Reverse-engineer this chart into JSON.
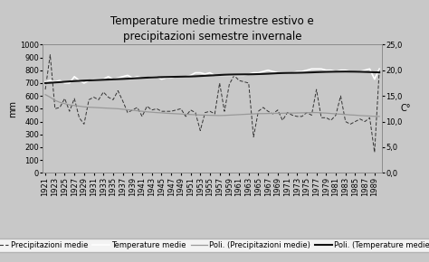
{
  "title": "Temperature medie trimestre estivo e\nprecipitazioni semestre invernale",
  "ylabel_left": "mm",
  "ylabel_right": "C°",
  "years": [
    1921,
    1922,
    1923,
    1924,
    1925,
    1926,
    1927,
    1928,
    1929,
    1930,
    1931,
    1932,
    1933,
    1934,
    1935,
    1936,
    1937,
    1938,
    1939,
    1940,
    1941,
    1942,
    1943,
    1944,
    1945,
    1946,
    1947,
    1948,
    1949,
    1950,
    1951,
    1952,
    1953,
    1954,
    1955,
    1956,
    1957,
    1958,
    1959,
    1960,
    1961,
    1962,
    1963,
    1964,
    1965,
    1966,
    1967,
    1968,
    1969,
    1970,
    1971,
    1972,
    1973,
    1974,
    1975,
    1976,
    1977,
    1978,
    1979,
    1980,
    1981,
    1982,
    1983,
    1984,
    1985,
    1986,
    1987,
    1988,
    1989,
    1990
  ],
  "precip": [
    650,
    920,
    500,
    510,
    580,
    480,
    580,
    430,
    380,
    570,
    590,
    570,
    630,
    590,
    570,
    640,
    560,
    470,
    490,
    510,
    440,
    520,
    490,
    500,
    480,
    480,
    480,
    490,
    500,
    440,
    490,
    470,
    330,
    470,
    480,
    460,
    700,
    480,
    690,
    760,
    720,
    710,
    700,
    280,
    480,
    510,
    480,
    460,
    490,
    410,
    470,
    450,
    440,
    440,
    470,
    450,
    650,
    430,
    430,
    410,
    450,
    600,
    400,
    380,
    400,
    420,
    400,
    430,
    160,
    810
  ],
  "temp_c": [
    17.75,
    18.0,
    17.75,
    18.0,
    17.5,
    17.5,
    18.75,
    18.0,
    17.5,
    18.0,
    18.25,
    18.25,
    18.25,
    18.75,
    18.25,
    18.5,
    18.75,
    19.0,
    18.5,
    18.75,
    18.5,
    18.5,
    18.75,
    18.75,
    18.25,
    18.5,
    18.5,
    18.75,
    18.75,
    18.75,
    19.0,
    19.5,
    19.5,
    19.25,
    19.5,
    19.0,
    19.0,
    19.0,
    19.0,
    19.0,
    19.0,
    19.0,
    19.25,
    19.5,
    19.5,
    19.75,
    20.0,
    19.75,
    19.5,
    19.5,
    19.5,
    19.5,
    19.75,
    19.75,
    20.0,
    20.25,
    20.25,
    20.25,
    20.0,
    20.0,
    19.75,
    20.0,
    20.0,
    19.75,
    19.75,
    19.75,
    20.0,
    20.25,
    18.25,
    20.25
  ],
  "poli_precip": [
    610,
    590,
    565,
    550,
    540,
    530,
    525,
    520,
    515,
    512,
    510,
    508,
    506,
    504,
    502,
    500,
    496,
    492,
    488,
    484,
    480,
    476,
    473,
    470,
    468,
    465,
    463,
    461,
    459,
    457,
    455,
    453,
    451,
    450,
    449,
    448,
    447,
    448,
    450,
    452,
    454,
    456,
    458,
    460,
    462,
    462,
    463,
    464,
    464,
    465,
    466,
    466,
    467,
    468,
    469,
    470,
    470,
    468,
    466,
    463,
    460,
    458,
    455,
    452,
    450,
    447,
    445,
    443,
    441,
    440
  ],
  "poli_temp_c": [
    17.5,
    17.55,
    17.62,
    17.68,
    17.75,
    17.82,
    17.88,
    17.93,
    17.98,
    18.02,
    18.06,
    18.1,
    18.14,
    18.18,
    18.22,
    18.26,
    18.3,
    18.35,
    18.4,
    18.45,
    18.5,
    18.55,
    18.6,
    18.63,
    18.66,
    18.68,
    18.7,
    18.72,
    18.74,
    18.76,
    18.78,
    18.82,
    18.87,
    18.92,
    18.97,
    19.02,
    19.07,
    19.12,
    19.15,
    19.17,
    19.18,
    19.19,
    19.2,
    19.22,
    19.25,
    19.28,
    19.32,
    19.37,
    19.42,
    19.45,
    19.47,
    19.48,
    19.5,
    19.52,
    19.55,
    19.58,
    19.62,
    19.65,
    19.68,
    19.7,
    19.72,
    19.73,
    19.74,
    19.73,
    19.72,
    19.7,
    19.67,
    19.64,
    19.6,
    19.58
  ],
  "ylim_left": [
    0,
    1000
  ],
  "ylim_right": [
    0.0,
    25.0
  ],
  "yticks_left": [
    0,
    100,
    200,
    300,
    400,
    500,
    600,
    700,
    800,
    900,
    1000
  ],
  "yticks_right": [
    0.0,
    5.0,
    10.0,
    15.0,
    20.0,
    25.0
  ],
  "bg_color": "#c8c8c8",
  "plot_bg_color": "#c8c8c8",
  "precip_color": "#333333",
  "temp_color": "#ffffff",
  "poli_precip_color": "#999999",
  "poli_temp_color": "#111111",
  "title_fontsize": 8.5,
  "tick_fontsize": 6,
  "legend_fontsize": 6
}
